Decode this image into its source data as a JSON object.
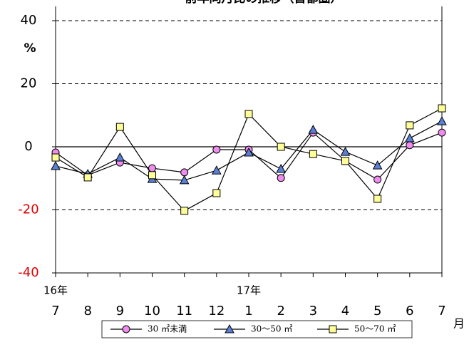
{
  "chart_data": {
    "type": "line",
    "title": "前年同月比の推移（首都圏）",
    "y_unit": "%",
    "x_unit": "月",
    "categories": [
      "7",
      "8",
      "9",
      "10",
      "11",
      "12",
      "1",
      "2",
      "3",
      "4",
      "5",
      "6",
      "7"
    ],
    "year_labels": [
      "16年",
      null,
      null,
      null,
      null,
      null,
      "17年",
      null,
      null,
      null,
      null,
      null,
      null
    ],
    "ylim": [
      -40,
      40
    ],
    "yticks": [
      -40,
      -20,
      0,
      20,
      40
    ],
    "negative_tick_color": "#e00000",
    "grid": true,
    "legend": "bottom",
    "series": [
      {
        "name": "30 ㎡未満",
        "color": "#f08cf0",
        "marker": "circle",
        "values": [
          -1.8,
          -9,
          -5,
          -6.8,
          -8.1,
          -0.9,
          -0.9,
          -9.9,
          4.5,
          -4.5,
          -10.4,
          0.5,
          4.5
        ]
      },
      {
        "name": "30～50 ㎡",
        "color": "#5b7fd6",
        "marker": "triangle",
        "values": [
          -6.1,
          -8.6,
          -3.4,
          -10.2,
          -10.6,
          -7.5,
          -1.8,
          -7,
          5.4,
          -1.6,
          -5.9,
          2.7,
          8.1
        ]
      },
      {
        "name": "50～70 ㎡",
        "color": "#ffff99",
        "marker": "square",
        "values": [
          -3.4,
          -9.7,
          6.3,
          -9,
          -20.3,
          -14.7,
          10.4,
          0,
          -2.3,
          -4.5,
          -16.5,
          6.8,
          12.2
        ]
      }
    ]
  }
}
